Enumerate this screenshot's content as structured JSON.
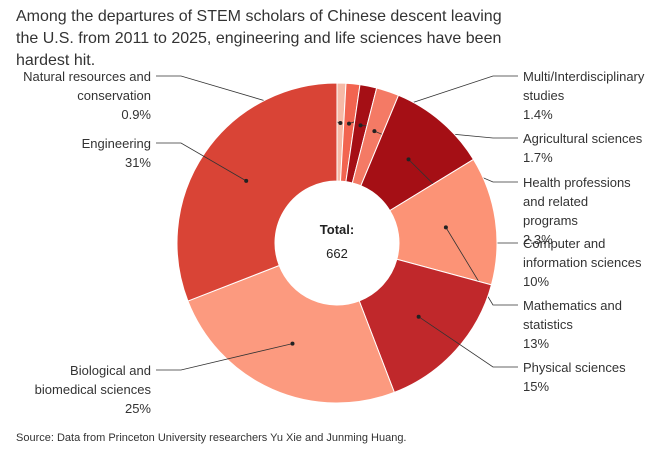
{
  "chart_data": {
    "type": "donut",
    "title": "Among the departures of STEM scholars of Chinese descent leaving the U.S. from 2011 to 2025, engineering and life sciences have been hardest hit.",
    "center_label": "Total:",
    "center_value": 662,
    "categories": [
      "Natural resources and conservation",
      "Multi/Interdisciplinary studies",
      "Agricultural sciences",
      "Health professions and related programs",
      "Computer and information sciences",
      "Mathematics and statistics",
      "Physical sciences",
      "Biological and biomedical sciences",
      "Engineering"
    ],
    "values": [
      0.9,
      1.4,
      1.7,
      2.3,
      10,
      13,
      15,
      25,
      31
    ],
    "value_labels": [
      "0.9%",
      "1.4%",
      "1.7%",
      "2.3%",
      "10%",
      "13%",
      "15%",
      "25%",
      "31%"
    ],
    "colors": [
      "#f6b9a6",
      "#f26450",
      "#a50f15",
      "#f47a65",
      "#a50f15",
      "#fc9376",
      "#c0282b",
      "#fc9a7f",
      "#d94436"
    ]
  },
  "source": "Source: Data from Princeton University researchers Yu Xie and Junming Huang."
}
